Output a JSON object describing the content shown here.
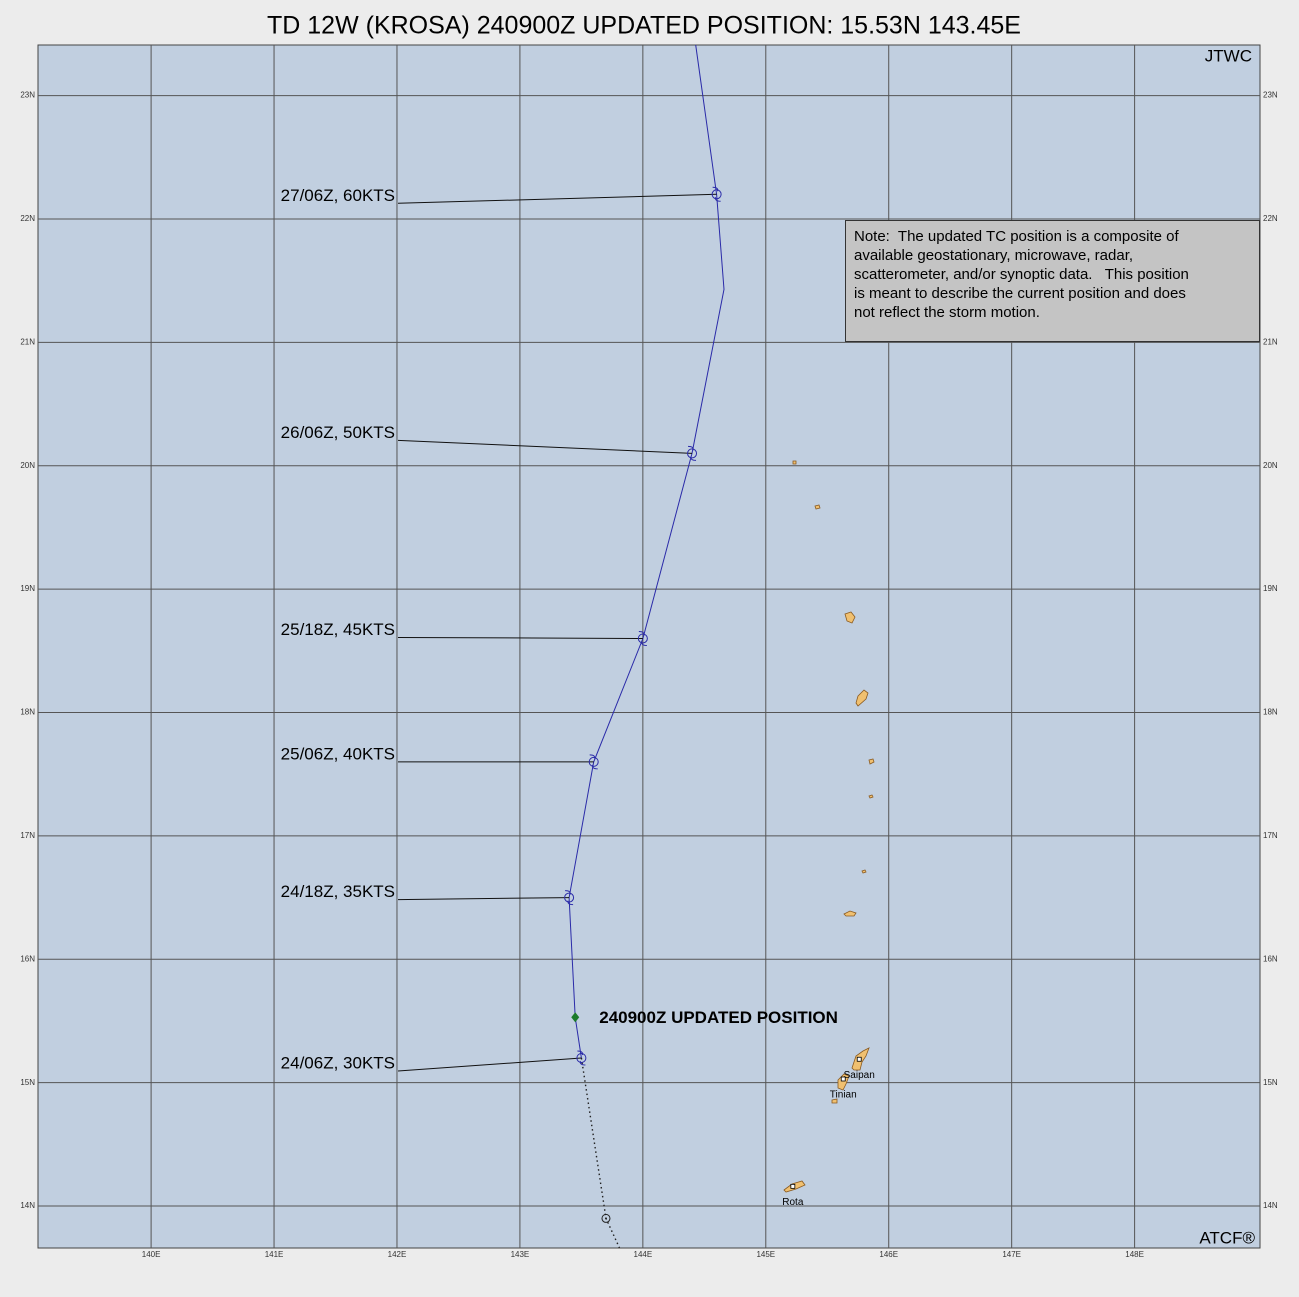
{
  "map": {
    "title": "TD 12W (KROSA) 240900Z UPDATED POSITION: 15.53N 143.45E",
    "source": "JTWC",
    "footer": "ATCF®",
    "note": [
      "Note:  The updated TC position is a composite of",
      "available geostationary, microwave, radar,",
      "scatterometer, and/or synoptic data.   This position",
      "is meant to describe the current position and does",
      "not reflect the storm motion."
    ],
    "xlim": [
      139.08,
      149.02
    ],
    "ylim": [
      13.66,
      23.41
    ],
    "grid": true,
    "xticks": [
      {
        "value": 140,
        "label": "140E"
      },
      {
        "value": 141,
        "label": "141E"
      },
      {
        "value": 142,
        "label": "142E"
      },
      {
        "value": 143,
        "label": "143E"
      },
      {
        "value": 144,
        "label": "144E"
      },
      {
        "value": 145,
        "label": "145E"
      },
      {
        "value": 146,
        "label": "146E"
      },
      {
        "value": 147,
        "label": "147E"
      },
      {
        "value": 148,
        "label": "148E"
      }
    ],
    "yticks": [
      {
        "value": 14,
        "label": "14N"
      },
      {
        "value": 15,
        "label": "15N"
      },
      {
        "value": 16,
        "label": "16N"
      },
      {
        "value": 17,
        "label": "17N"
      },
      {
        "value": 18,
        "label": "18N"
      },
      {
        "value": 19,
        "label": "19N"
      },
      {
        "value": 20,
        "label": "20N"
      },
      {
        "value": 21,
        "label": "21N"
      },
      {
        "value": 22,
        "label": "22N"
      },
      {
        "value": 23,
        "label": "23N"
      }
    ],
    "track": {
      "color": "#2a2aa8",
      "lon": [
        144.43,
        144.6,
        144.66,
        144.4,
        144.0,
        143.6,
        143.4,
        143.45,
        143.5
      ],
      "lat": [
        23.41,
        22.2,
        21.43,
        20.1,
        18.6,
        17.6,
        16.5,
        15.53,
        15.2
      ]
    },
    "past_track": {
      "color": "#222222",
      "lon": [
        143.5,
        143.7,
        143.81
      ],
      "lat": [
        15.2,
        13.9,
        13.66
      ]
    },
    "forecasts": [
      {
        "label": "27/06Z,  60KTS",
        "lon": 144.6,
        "lat": 22.2
      },
      {
        "label": "26/06Z,  50KTS",
        "lon": 144.4,
        "lat": 20.1
      },
      {
        "label": "25/18Z,  45KTS",
        "lon": 144.0,
        "lat": 18.6
      },
      {
        "label": "25/06Z,  40KTS",
        "lon": 143.6,
        "lat": 17.6
      },
      {
        "label": "24/18Z,  35KTS",
        "lon": 143.4,
        "lat": 16.5
      },
      {
        "label": "24/06Z,  30KTS",
        "lon": 143.5,
        "lat": 15.2
      }
    ],
    "past_positions": [
      {
        "lon": 143.7,
        "lat": 13.9
      }
    ],
    "updated_position": {
      "label": "240900Z UPDATED POSITION",
      "lon": 143.45,
      "lat": 15.53,
      "color": "#1a7a2a"
    },
    "places": [
      {
        "name": "Saipan",
        "lon": 145.76,
        "lat": 15.06
      },
      {
        "name": "Tinian",
        "lon": 145.63,
        "lat": 14.9
      },
      {
        "name": "Rota",
        "lon": 145.22,
        "lat": 14.03
      }
    ]
  }
}
